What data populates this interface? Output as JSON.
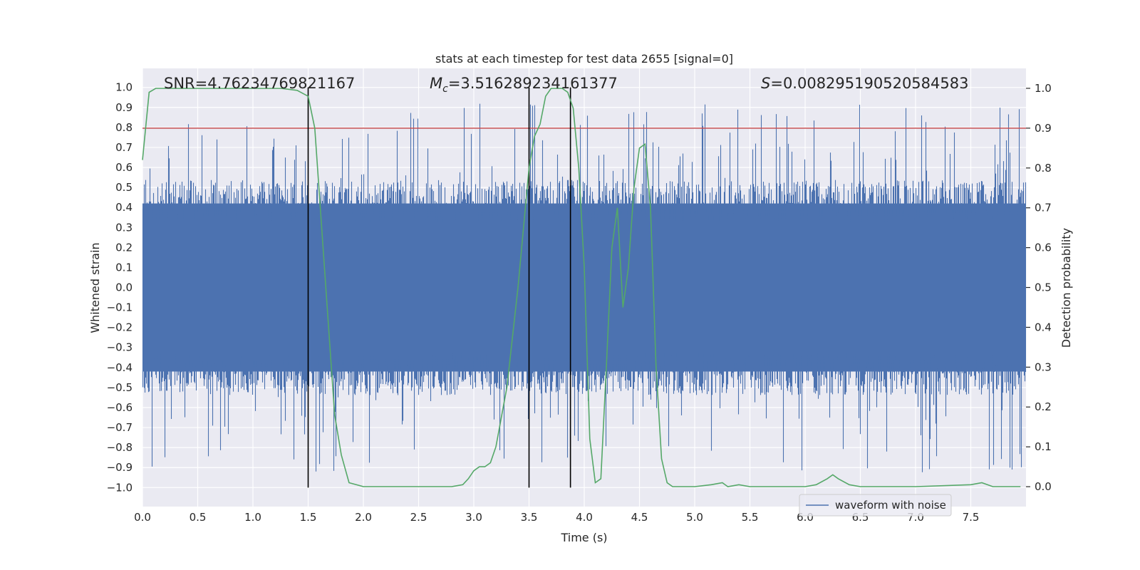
{
  "chart_data": {
    "type": "line",
    "title": "stats at each timestep for test data 2655 [signal=0]",
    "xlabel": "Time (s)",
    "ylabel_left": "Whitened strain",
    "ylabel_right": "Detection probability",
    "xlim": [
      0.0,
      8.0
    ],
    "ylim_left": [
      -1.095,
      1.095
    ],
    "ylim_right": [
      -0.05,
      1.05
    ],
    "x_ticks": [
      "0.0",
      "0.5",
      "1.0",
      "1.5",
      "2.0",
      "2.5",
      "3.0",
      "3.5",
      "4.0",
      "4.5",
      "5.0",
      "5.5",
      "6.0",
      "6.5",
      "7.0",
      "7.5"
    ],
    "x_tick_values": [
      0,
      0.5,
      1,
      1.5,
      2,
      2.5,
      3,
      3.5,
      4,
      4.5,
      5,
      5.5,
      6,
      6.5,
      7,
      7.5
    ],
    "y_left_ticks": [
      "1.0",
      "0.9",
      "0.8",
      "0.7",
      "0.6",
      "0.5",
      "0.4",
      "0.3",
      "0.2",
      "0.1",
      "0.0",
      "-0.1",
      "-0.2",
      "-0.3",
      "-0.4",
      "-0.5",
      "-0.6",
      "-0.7",
      "-0.8",
      "-0.9",
      "-1.0"
    ],
    "y_left_tick_values": [
      1,
      0.9,
      0.8,
      0.7,
      0.6,
      0.5,
      0.4,
      0.3,
      0.2,
      0.1,
      0,
      -0.1,
      -0.2,
      -0.3,
      -0.4,
      -0.5,
      -0.6,
      -0.7,
      -0.8,
      -0.9,
      -1.0
    ],
    "y_right_ticks": [
      "1.0",
      "0.9",
      "0.8",
      "0.7",
      "0.6",
      "0.5",
      "0.4",
      "0.3",
      "0.2",
      "0.1",
      "0.0"
    ],
    "y_right_tick_values": [
      1,
      0.9,
      0.8,
      0.7,
      0.6,
      0.5,
      0.4,
      0.3,
      0.2,
      0.1,
      0
    ],
    "annotations": {
      "snr_text": "SNR=4.76234769821167",
      "mc_symbol": "M",
      "mc_sub": "c",
      "mc_value": "=3.516289234161377",
      "s_symbol": "S",
      "s_value": "=0.008295190520584583"
    },
    "legend": {
      "label": "waveform with noise",
      "placement": "lower-right"
    },
    "threshold": {
      "value": 0.9,
      "axis": "right",
      "color": "#c44e52"
    },
    "vertical_lines": [
      1.5,
      3.5,
      3.875
    ],
    "vertical_line_range": [
      -1.0,
      1.0
    ],
    "series": [
      {
        "name": "waveform with noise",
        "axis": "left",
        "color": "#4c72b0",
        "kind": "noise",
        "typical_envelope": 0.42,
        "peak_max": 1.0,
        "peak_min": -1.0
      },
      {
        "name": "detection probability",
        "axis": "right",
        "color": "#55a868",
        "x": [
          0.0,
          0.06,
          0.12,
          0.25,
          0.5,
          0.75,
          1.0,
          1.25,
          1.4,
          1.5,
          1.56,
          1.62,
          1.68,
          1.74,
          1.8,
          1.87,
          2.0,
          2.2,
          2.5,
          2.8,
          2.9,
          2.95,
          3.0,
          3.05,
          3.1,
          3.15,
          3.2,
          3.3,
          3.4,
          3.5,
          3.55,
          3.6,
          3.65,
          3.7,
          3.75,
          3.8,
          3.85,
          3.9,
          3.95,
          4.0,
          4.05,
          4.1,
          4.15,
          4.2,
          4.25,
          4.3,
          4.35,
          4.4,
          4.45,
          4.5,
          4.55,
          4.6,
          4.65,
          4.7,
          4.75,
          4.8,
          4.9,
          5.0,
          5.15,
          5.25,
          5.3,
          5.4,
          5.5,
          5.7,
          6.0,
          6.1,
          6.2,
          6.25,
          6.3,
          6.4,
          6.5,
          7.0,
          7.5,
          7.6,
          7.7,
          7.95
        ],
        "y": [
          0.82,
          0.99,
          1.0,
          1.0,
          1.0,
          1.0,
          1.0,
          1.0,
          0.995,
          0.98,
          0.9,
          0.66,
          0.42,
          0.18,
          0.08,
          0.01,
          0.0,
          0.0,
          0.0,
          0.0,
          0.005,
          0.02,
          0.04,
          0.05,
          0.05,
          0.06,
          0.1,
          0.25,
          0.5,
          0.8,
          0.88,
          0.91,
          0.98,
          1.0,
          1.0,
          1.0,
          0.99,
          0.95,
          0.8,
          0.55,
          0.12,
          0.01,
          0.02,
          0.3,
          0.6,
          0.7,
          0.45,
          0.55,
          0.75,
          0.85,
          0.86,
          0.7,
          0.3,
          0.07,
          0.01,
          0.0,
          0.0,
          0.0,
          0.005,
          0.01,
          0.0,
          0.005,
          0.0,
          0.0,
          0.0,
          0.005,
          0.02,
          0.03,
          0.02,
          0.005,
          0.0,
          0.0,
          0.005,
          0.01,
          0.0,
          0.0
        ]
      }
    ]
  }
}
